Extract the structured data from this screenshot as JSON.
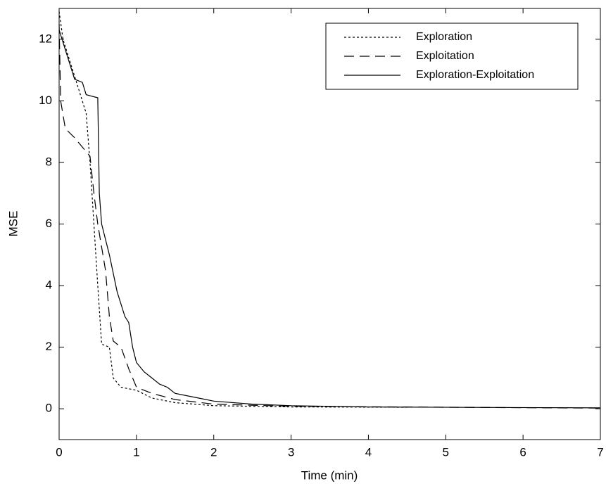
{
  "chart_data": {
    "type": "line",
    "xlabel": "Time (min)",
    "ylabel": "MSE",
    "xlim": [
      0,
      7
    ],
    "ylim": [
      -1,
      13
    ],
    "xticks": [
      0,
      1,
      2,
      3,
      4,
      5,
      6,
      7
    ],
    "yticks": [
      0,
      2,
      4,
      6,
      8,
      10,
      12
    ],
    "legend": "upper right",
    "series": [
      {
        "name": "Exploration",
        "color": "#000000",
        "style": "dotted",
        "x": [
          0,
          0.05,
          0.2,
          0.35,
          0.4,
          0.45,
          0.5,
          0.55,
          0.65,
          0.7,
          0.8,
          1.0,
          1.2,
          1.5,
          2,
          3,
          4.5
        ],
        "values": [
          12.9,
          12,
          10.8,
          9.6,
          8,
          6,
          4,
          2.1,
          2,
          1,
          0.7,
          0.6,
          0.35,
          0.2,
          0.1,
          0.06,
          0.05
        ]
      },
      {
        "name": "Exploitation",
        "color": "#000000",
        "style": "dashed",
        "x": [
          0,
          0.02,
          0.08,
          0.2,
          0.4,
          0.45,
          0.5,
          0.6,
          0.65,
          0.7,
          0.8,
          0.9,
          0.95,
          1.0,
          1.2,
          1.5,
          2,
          3,
          7
        ],
        "values": [
          12.5,
          10,
          9.1,
          8.8,
          8.2,
          7,
          6,
          4.5,
          3,
          2.2,
          2.0,
          1.3,
          1.0,
          0.7,
          0.5,
          0.3,
          0.15,
          0.08,
          0.02
        ]
      },
      {
        "name": "Exploration-Exploitation",
        "color": "#000000",
        "style": "solid",
        "x": [
          0,
          0.1,
          0.2,
          0.3,
          0.35,
          0.5,
          0.52,
          0.55,
          0.65,
          0.75,
          0.85,
          0.9,
          0.95,
          1.0,
          1.1,
          1.2,
          1.3,
          1.4,
          1.5,
          1.8,
          2,
          2.5,
          3,
          4,
          7
        ],
        "values": [
          12.3,
          11.5,
          10.7,
          10.6,
          10.2,
          10.1,
          7,
          6,
          5,
          3.8,
          3,
          2.8,
          2,
          1.5,
          1.2,
          1.0,
          0.8,
          0.7,
          0.5,
          0.35,
          0.25,
          0.15,
          0.1,
          0.06,
          0.03
        ]
      }
    ]
  }
}
